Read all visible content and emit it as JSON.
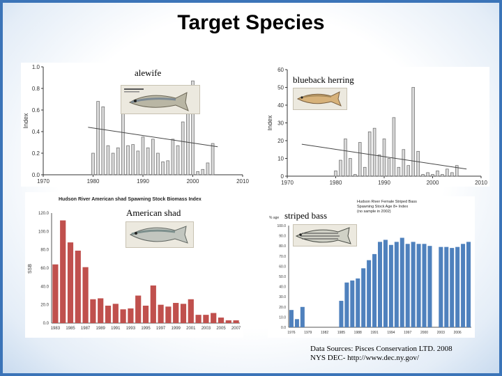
{
  "slide": {
    "title": "Target Species",
    "sources": [
      "Data Sources: Pisces Conservation LTD. 2008",
      "NYS DEC- http://www.dec.ny.gov/"
    ]
  },
  "species": {
    "alewife": "alewife",
    "blueback": "blueback herring",
    "shad": "American shad",
    "bass": "striped bass"
  },
  "colors": {
    "frame": "#3b74b8",
    "shad_bar": "#c0504d",
    "bass_bar": "#4f81bd",
    "index_bar": "#d9d9d9"
  },
  "chart_data": [
    {
      "type": "bar",
      "id": "alewife",
      "ylabel": "Index",
      "ylim": [
        0,
        1.0
      ],
      "xlim": [
        1970,
        2010
      ],
      "yticks": [
        "0.0",
        "0.2",
        "0.4",
        "0.6",
        "0.8",
        "1.0"
      ],
      "xticks": [
        "1970",
        "1980",
        "1990",
        "2000",
        "2010"
      ],
      "x": [
        1980,
        1981,
        1982,
        1983,
        1984,
        1985,
        1986,
        1987,
        1988,
        1989,
        1990,
        1991,
        1992,
        1993,
        1994,
        1995,
        1996,
        1997,
        1998,
        1999,
        2000,
        2001,
        2002,
        2003,
        2004
      ],
      "values": [
        0.2,
        0.68,
        0.63,
        0.27,
        0.2,
        0.25,
        0.65,
        0.27,
        0.28,
        0.22,
        0.35,
        0.25,
        0.33,
        0.2,
        0.12,
        0.13,
        0.33,
        0.27,
        0.49,
        0.57,
        0.87,
        0.03,
        0.05,
        0.11,
        0.29
      ],
      "trend": [
        [
          1979,
          0.44
        ],
        [
          2005,
          0.26
        ]
      ]
    },
    {
      "type": "bar",
      "id": "blueback",
      "ylabel": "Index",
      "ylim": [
        0,
        60
      ],
      "xlim": [
        1970,
        2010
      ],
      "yticks": [
        "0",
        "10",
        "20",
        "30",
        "40",
        "50",
        "60"
      ],
      "xticks": [
        "1970",
        "1980",
        "1990",
        "2000",
        "2010"
      ],
      "x": [
        1980,
        1981,
        1982,
        1983,
        1984,
        1985,
        1986,
        1987,
        1988,
        1989,
        1990,
        1991,
        1992,
        1993,
        1994,
        1995,
        1996,
        1997,
        1998,
        1999,
        2000,
        2001,
        2002,
        2003,
        2004,
        2005
      ],
      "values": [
        3,
        9,
        21,
        10,
        1,
        19,
        5,
        25,
        27,
        12,
        21,
        10,
        33,
        5,
        15,
        6,
        50,
        14,
        1,
        2,
        1,
        3,
        1,
        4,
        2,
        6
      ],
      "trend": [
        [
          1973,
          18
        ],
        [
          2007,
          4
        ]
      ]
    },
    {
      "type": "bar",
      "id": "shad",
      "title": "Hudson River American shad Spawning Stock Biomass Index",
      "ylabel": "SSB",
      "ylim": [
        0,
        120
      ],
      "yticks": [
        "0.0",
        "20.0",
        "40.0",
        "60.0",
        "80.0",
        "100.0",
        "120.0"
      ],
      "xticks": [
        "1983",
        "1985",
        "1987",
        "1989",
        "1991",
        "1993",
        "1995",
        "1997",
        "1999",
        "2001",
        "2003",
        "2005",
        "2007"
      ],
      "x": [
        1983,
        1984,
        1985,
        1986,
        1987,
        1988,
        1989,
        1990,
        1991,
        1992,
        1993,
        1994,
        1995,
        1996,
        1997,
        1998,
        1999,
        2000,
        2001,
        2002,
        2003,
        2004,
        2005,
        2006,
        2007
      ],
      "values": [
        64,
        112,
        88,
        79,
        61,
        26,
        27,
        19,
        21,
        15,
        16,
        30,
        19,
        41,
        20,
        18,
        22,
        21,
        26,
        9,
        9,
        11,
        6,
        3,
        3
      ]
    },
    {
      "type": "bar",
      "id": "bass",
      "title": [
        "Hudson River Female Striped Bass",
        "Spawning Stock Age 8+ Index",
        "(no sample in 2002)"
      ],
      "ylabel": "% age",
      "ylim": [
        0,
        100
      ],
      "yticks": [
        "0.0",
        "10.0",
        "20.0",
        "30.0",
        "40.0",
        "50.0",
        "60.0",
        "70.0",
        "80.0",
        "90.0",
        "100.0"
      ],
      "xticks": [
        "1976",
        "1979",
        "1982",
        "1985",
        "1988",
        "1991",
        "1994",
        "1997",
        "2000",
        "2003",
        "2006",
        "2009"
      ],
      "x": [
        1976,
        1977,
        1978,
        1979,
        1980,
        1981,
        1982,
        1983,
        1984,
        1985,
        1986,
        1987,
        1988,
        1989,
        1990,
        1991,
        1992,
        1993,
        1994,
        1995,
        1996,
        1997,
        1998,
        1999,
        2000,
        2001,
        2002,
        2003,
        2004,
        2005,
        2006,
        2007,
        2008
      ],
      "values": [
        17,
        8,
        20,
        null,
        null,
        null,
        null,
        null,
        null,
        26,
        44,
        46,
        48,
        58,
        66,
        72,
        84,
        86,
        81,
        84,
        88,
        82,
        84,
        82,
        82,
        80,
        null,
        79,
        79,
        78,
        79,
        82,
        84
      ]
    }
  ]
}
